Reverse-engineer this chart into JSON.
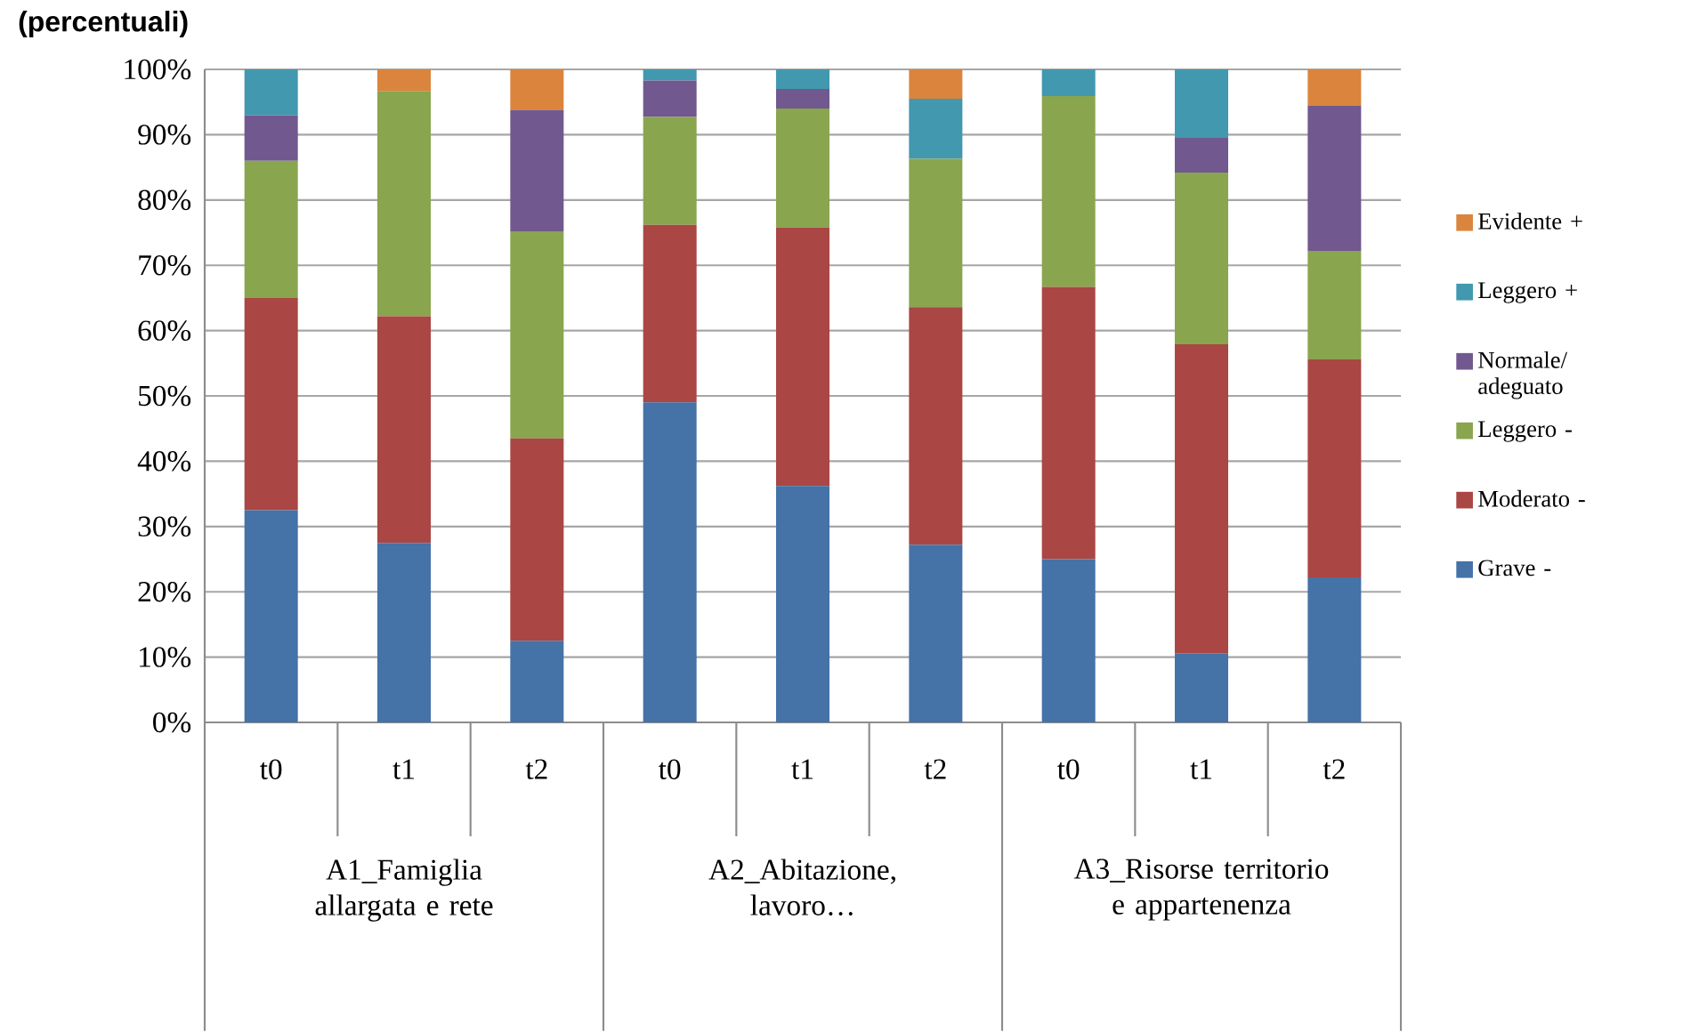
{
  "chart_data": {
    "type": "bar",
    "stacked": true,
    "title": "(percentuali)",
    "categories": [
      "t0",
      "t1",
      "t2",
      "t0",
      "t1",
      "t2",
      "t0",
      "t1",
      "t2"
    ],
    "annotations": [
      "A1_Famiglia allargata e rete",
      "A2_Abitazione, lavoro…",
      "A3_Risorse territorio e appartenenza"
    ],
    "series": [
      {
        "name": "Grave -",
        "color": "#4572a7",
        "values": [
          32.5,
          27.5,
          12.5,
          49,
          36.2,
          27.2,
          25,
          10.6,
          22.2
        ]
      },
      {
        "name": "Moderato -",
        "color": "#aa4643",
        "values": [
          32.5,
          34.7,
          31,
          27.2,
          39.6,
          36.4,
          41.7,
          47.3,
          33.4
        ]
      },
      {
        "name": "Leggero -",
        "color": "#89a54e",
        "values": [
          21,
          34.5,
          31.7,
          16.5,
          18.2,
          22.7,
          29.2,
          26.3,
          16.6
        ]
      },
      {
        "name": "Normale/ adeguato",
        "color": "#71588f",
        "values": [
          7,
          0,
          18.6,
          5.6,
          3,
          0,
          0,
          5.3,
          22.2
        ]
      },
      {
        "name": "Leggero +",
        "color": "#4198af",
        "values": [
          7,
          0,
          0,
          1.7,
          3,
          9.2,
          4.1,
          10.5,
          0
        ]
      },
      {
        "name": "Evidente +",
        "color": "#db843d",
        "values": [
          0,
          3.3,
          6.2,
          0,
          0,
          4.5,
          0,
          0,
          5.6
        ]
      }
    ],
    "ylim": [
      0,
      100
    ],
    "yticks": [
      {
        "value": 0,
        "label": "0%"
      },
      {
        "value": 10,
        "label": "10%"
      },
      {
        "value": 20,
        "label": "20%"
      },
      {
        "value": 30,
        "label": "30%"
      },
      {
        "value": 40,
        "label": "40%"
      },
      {
        "value": 50,
        "label": "50%"
      },
      {
        "value": 60,
        "label": "60%"
      },
      {
        "value": 70,
        "label": "70%"
      },
      {
        "value": 80,
        "label": "80%"
      },
      {
        "value": 90,
        "label": "90%"
      },
      {
        "value": 100,
        "label": "100%"
      }
    ],
    "grid": "y",
    "legend": "right"
  }
}
